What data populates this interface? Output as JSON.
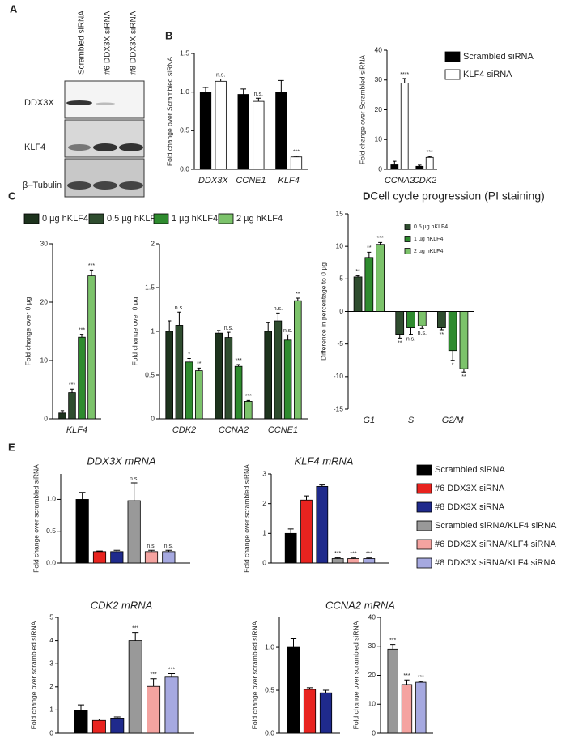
{
  "panel_labels": [
    "A",
    "B",
    "C",
    "D",
    "E"
  ],
  "blot": {
    "lanes": [
      "Scrambled siRNA",
      "#6 DDX3X siRNA",
      "#8 DDX3X siRNA"
    ],
    "rows": [
      "DDX3X",
      "KLF4",
      "β–Tubulin"
    ]
  },
  "chart_data": [
    {
      "type": "bar",
      "ylabel": "Fold change over Scrambled siRNA",
      "categories": [
        "DDX3X",
        "CCNE1",
        "KLF4"
      ],
      "series": [
        {
          "color": "#000000",
          "values": [
            1.0,
            0.97,
            1.0
          ],
          "errors": [
            0.06,
            0.07,
            0.15
          ]
        },
        {
          "color": "#ffffff",
          "values": [
            1.14,
            0.88,
            0.16
          ],
          "errors": [
            0.03,
            0.04,
            0.01
          ],
          "annotations": [
            "n.s.",
            "n.s.",
            "***"
          ]
        }
      ],
      "ylim": [
        0,
        1.5
      ],
      "yticks": [
        {
          "value": 0,
          "label": "0.0"
        },
        {
          "value": 0.5,
          "label": "0.5"
        },
        {
          "value": 1,
          "label": "1.0"
        },
        {
          "value": 1.5,
          "label": "1.5"
        }
      ]
    },
    {
      "type": "bar",
      "ylabel": "Fold change over Scrambled siRNA",
      "categories": [
        "CCNA2",
        "CDK2"
      ],
      "series": [
        {
          "name": "Scrambled siRNA",
          "color": "#000000",
          "values": [
            1.5,
            1.0
          ],
          "errors": [
            1.2,
            0.4
          ]
        },
        {
          "name": "KLF4 siRNA",
          "color": "#ffffff",
          "values": [
            29,
            4
          ],
          "errors": [
            1.5,
            0.3
          ],
          "annotations": [
            "****",
            "***"
          ]
        }
      ],
      "ylim": [
        0,
        40
      ],
      "yticks": [
        0,
        10,
        20,
        30,
        40
      ]
    },
    {
      "type": "bar",
      "ylabel": "Fold change over 0 µg",
      "categories": [
        "KLF4"
      ],
      "series": [
        {
          "name": "0 µg hKLF4",
          "color": "#1d331d",
          "values": [
            1.0
          ],
          "errors": [
            0.4
          ]
        },
        {
          "name": "0.5 µg hKLF4",
          "color": "#2f4d2f",
          "values": [
            4.5
          ],
          "errors": [
            0.6
          ],
          "annotations": [
            "***"
          ]
        },
        {
          "name": "1 µg hKLF4",
          "color": "#2e8b2e",
          "values": [
            14
          ],
          "errors": [
            0.5
          ],
          "annotations": [
            "***"
          ]
        },
        {
          "name": "2 µg hKLF4",
          "color": "#7cc36b",
          "values": [
            24.5
          ],
          "errors": [
            1.0
          ],
          "annotations": [
            "***"
          ]
        }
      ],
      "ylim": [
        0,
        30
      ],
      "yticks": [
        0,
        10,
        20,
        30
      ]
    },
    {
      "type": "bar",
      "ylabel": "Fold change over 0 µg",
      "categories": [
        "CDK2",
        "CCNA2",
        "CCNE1"
      ],
      "series": [
        {
          "color": "#1d331d",
          "values": [
            1.0,
            0.98,
            1.0
          ],
          "errors": [
            0.12,
            0.03,
            0.1
          ]
        },
        {
          "color": "#2f4d2f",
          "values": [
            1.07,
            0.93,
            1.12
          ],
          "errors": [
            0.15,
            0.06,
            0.09
          ],
          "annotations": [
            "n.s.",
            "n.s.",
            "n.s."
          ]
        },
        {
          "color": "#2e8b2e",
          "values": [
            0.65,
            0.6,
            0.9
          ],
          "errors": [
            0.04,
            0.02,
            0.06
          ],
          "annotations": [
            "*",
            "***",
            "n.s."
          ]
        },
        {
          "color": "#7cc36b",
          "values": [
            0.55,
            0.2,
            1.35
          ],
          "errors": [
            0.03,
            0.01,
            0.03
          ],
          "annotations": [
            "**",
            "***",
            "**"
          ]
        }
      ],
      "ylim": [
        0,
        2
      ],
      "yticks": [
        0,
        0.5,
        1,
        1.5,
        2
      ]
    },
    {
      "type": "bar",
      "title": "Cell cycle progression (PI staining)",
      "ylabel": "Difference in percentage to 0 µg",
      "categories": [
        "G1",
        "S",
        "G2/M"
      ],
      "series": [
        {
          "name": "0.5 µg hKLF4",
          "color": "#2f4d2f",
          "values": [
            5.3,
            -3.5,
            -2.5
          ],
          "errors": [
            0.2,
            0.6,
            0.3
          ],
          "annotations": [
            "**",
            "**",
            "**"
          ]
        },
        {
          "name": "1 µg hKLF4",
          "color": "#2e8b2e",
          "values": [
            8.3,
            -2.5,
            -6
          ],
          "errors": [
            0.8,
            1.0,
            1.5
          ],
          "annotations": [
            "**",
            "n.s.",
            "*"
          ]
        },
        {
          "name": "2 µg hKLF4",
          "color": "#7cc36b",
          "values": [
            10.3,
            -2.2,
            -8.8
          ],
          "errors": [
            0.3,
            0.4,
            0.5
          ],
          "annotations": [
            "***",
            "n.s.",
            "**"
          ]
        }
      ],
      "ylim": [
        -15,
        15
      ],
      "yticks": [
        -15,
        -10,
        -5,
        0,
        5,
        10,
        15
      ]
    },
    {
      "type": "bar",
      "title": "DDX3X mRNA",
      "ylabel": "Fold change over scrambled siRNA",
      "categories": [
        null
      ],
      "series": [
        {
          "color": "#000000",
          "values": [
            1.0
          ],
          "errors": [
            0.11
          ]
        },
        {
          "color": "#e8231f",
          "values": [
            0.18
          ],
          "errors": [
            0.01
          ]
        },
        {
          "color": "#1f2a8c",
          "values": [
            0.18
          ],
          "errors": [
            0.02
          ]
        },
        {
          "color": "#999999",
          "values": [
            0.98
          ],
          "errors": [
            0.28
          ],
          "annotations": [
            "n.s."
          ]
        },
        {
          "color": "#f4a3a0",
          "values": [
            0.18
          ],
          "errors": [
            0.02
          ],
          "annotations": [
            "n.s."
          ]
        },
        {
          "color": "#a6a9e0",
          "values": [
            0.18
          ],
          "errors": [
            0.02
          ],
          "annotations": [
            "n.s."
          ]
        }
      ],
      "ylim": [
        0,
        1.4
      ],
      "yticks": [
        {
          "value": 0,
          "label": "0.0"
        },
        {
          "value": 0.5,
          "label": "0.5"
        },
        {
          "value": 1,
          "label": "1.0"
        }
      ]
    },
    {
      "type": "bar",
      "title": "KLF4 mRNA",
      "ylabel": "Fold change over scrambled siRNA",
      "categories": [
        null
      ],
      "series": [
        {
          "name": "Scrambled siRNA",
          "color": "#000000",
          "values": [
            1.0
          ],
          "errors": [
            0.15
          ]
        },
        {
          "name": "#6 DDX3X siRNA",
          "color": "#e8231f",
          "values": [
            2.12
          ],
          "errors": [
            0.14
          ]
        },
        {
          "name": "#8 DDX3X siRNA",
          "color": "#1f2a8c",
          "values": [
            2.58
          ],
          "errors": [
            0.05
          ]
        },
        {
          "name": "Scrambled siRNA/KLF4 siRNA",
          "color": "#999999",
          "values": [
            0.15
          ],
          "errors": [
            0.03
          ],
          "annotations": [
            "***"
          ]
        },
        {
          "name": "#6 DDX3X siRNA/KLF4 siRNA",
          "color": "#f4a3a0",
          "values": [
            0.15
          ],
          "errors": [
            0.02
          ],
          "annotations": [
            "***"
          ]
        },
        {
          "name": "#8 DDX3X siRNA/KLF4 siRNA",
          "color": "#a6a9e0",
          "values": [
            0.15
          ],
          "errors": [
            0.02
          ],
          "annotations": [
            "***"
          ]
        }
      ],
      "ylim": [
        0,
        3
      ],
      "yticks": [
        0,
        1,
        2,
        3
      ]
    },
    {
      "type": "bar",
      "title": "CDK2 mRNA",
      "ylabel": "Fold change over scrambled siRNA",
      "categories": [
        null
      ],
      "series": [
        {
          "color": "#000000",
          "values": [
            1.0
          ],
          "errors": [
            0.22
          ]
        },
        {
          "color": "#e8231f",
          "values": [
            0.55
          ],
          "errors": [
            0.06
          ]
        },
        {
          "color": "#1f2a8c",
          "values": [
            0.65
          ],
          "errors": [
            0.05
          ]
        },
        {
          "color": "#999999",
          "values": [
            4.0
          ],
          "errors": [
            0.35
          ],
          "annotations": [
            "***"
          ]
        },
        {
          "color": "#f4a3a0",
          "values": [
            2.02
          ],
          "errors": [
            0.33
          ],
          "annotations": [
            "***"
          ]
        },
        {
          "color": "#a6a9e0",
          "values": [
            2.42
          ],
          "errors": [
            0.15
          ],
          "annotations": [
            "***"
          ]
        }
      ],
      "ylim": [
        0,
        5
      ],
      "yticks": [
        0,
        1,
        2,
        3,
        4,
        5
      ]
    },
    {
      "type": "bar",
      "title": "CCNA2 mRNA",
      "ylabel": "Fold change over scrambled siRNA",
      "categories": [
        null
      ],
      "series": [
        {
          "color": "#000000",
          "values": [
            1.0
          ],
          "errors": [
            0.1
          ]
        },
        {
          "color": "#e8231f",
          "values": [
            0.51
          ],
          "errors": [
            0.02
          ]
        },
        {
          "color": "#1f2a8c",
          "values": [
            0.47
          ],
          "errors": [
            0.03
          ]
        }
      ],
      "ylim": [
        0,
        1.35
      ],
      "yticks": [
        {
          "value": 0,
          "label": "0.0"
        },
        {
          "value": 0.5,
          "label": "0.5"
        },
        {
          "value": 1,
          "label": "1.0"
        }
      ]
    },
    {
      "type": "bar",
      "ylabel": "Fold change over scrambled siRNA",
      "categories": [
        null
      ],
      "series": [
        {
          "color": "#999999",
          "values": [
            29
          ],
          "errors": [
            1.6
          ],
          "annotations": [
            "***"
          ]
        },
        {
          "color": "#f4a3a0",
          "values": [
            16.8
          ],
          "errors": [
            1.6
          ],
          "annotations": [
            "***"
          ]
        },
        {
          "color": "#a6a9e0",
          "values": [
            17.6
          ],
          "errors": [
            0.3
          ],
          "annotations": [
            "***"
          ]
        }
      ],
      "ylim": [
        0,
        40
      ],
      "yticks": [
        0,
        10,
        20,
        30,
        40
      ]
    }
  ]
}
